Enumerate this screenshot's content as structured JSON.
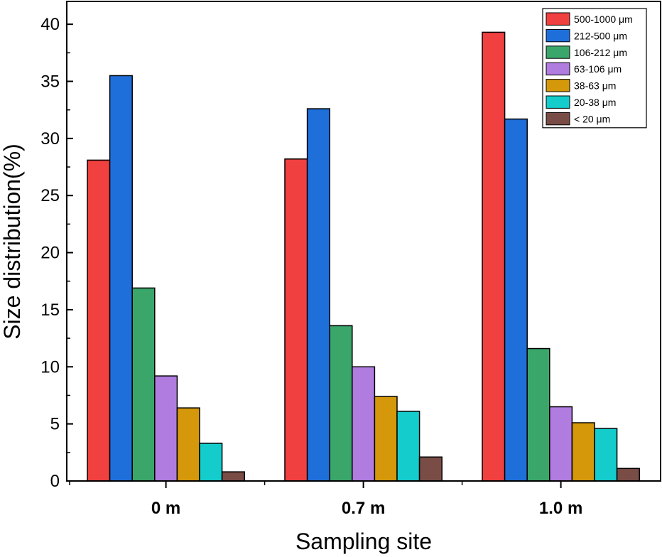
{
  "chart_data": {
    "type": "bar",
    "title": "",
    "xlabel": "Sampling site",
    "ylabel": "Size distribution(%)",
    "categories": [
      "0 m",
      "0.7 m",
      "1.0 m"
    ],
    "ylim": [
      0,
      42
    ],
    "yticks": [
      0,
      5,
      10,
      15,
      20,
      25,
      30,
      35,
      40
    ],
    "grid": false,
    "legend_position": "top-right",
    "series": [
      {
        "name": "500-1000 μm",
        "color": "#f04040",
        "values": [
          28.1,
          28.2,
          39.3
        ]
      },
      {
        "name": "212-500 μm",
        "color": "#1f6fdb",
        "values": [
          35.5,
          32.6,
          31.7
        ]
      },
      {
        "name": "106-212 μm",
        "color": "#3aa66a",
        "values": [
          16.9,
          13.6,
          11.6
        ]
      },
      {
        "name": "63-106 μm",
        "color": "#b07ce0",
        "values": [
          9.2,
          10.0,
          6.5
        ]
      },
      {
        "name": "38-63  μm",
        "color": "#d4980a",
        "values": [
          6.4,
          7.4,
          5.1
        ]
      },
      {
        "name": "20-38 μm",
        "color": "#14cccc",
        "values": [
          3.3,
          6.1,
          4.6
        ]
      },
      {
        "name": "< 20 μm",
        "color": "#7a4c46",
        "values": [
          0.8,
          2.1,
          1.1
        ]
      }
    ]
  }
}
